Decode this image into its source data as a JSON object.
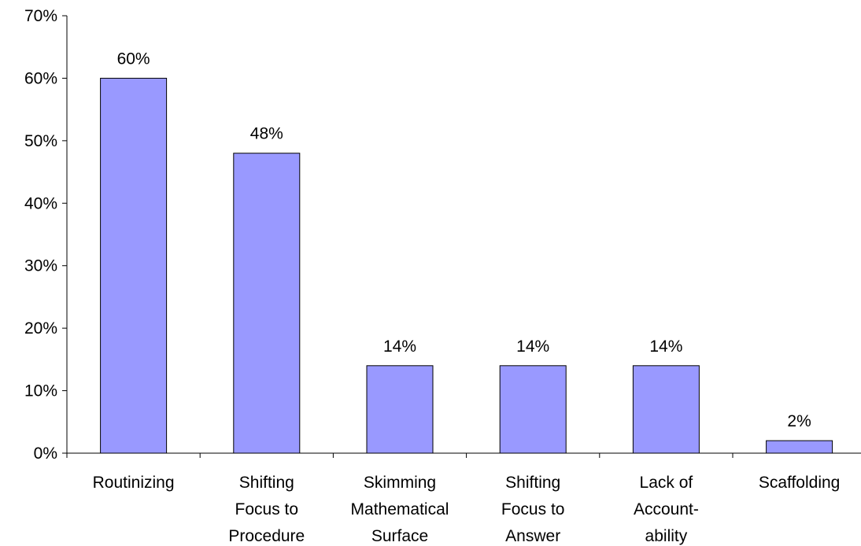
{
  "chart_data": {
    "type": "bar",
    "title": "",
    "xlabel": "",
    "ylabel": "",
    "categories": [
      [
        "Routinizing"
      ],
      [
        "Shifting",
        "Focus to",
        "Procedure"
      ],
      [
        "Skimming",
        "Mathematical",
        "Surface"
      ],
      [
        "Shifting",
        "Focus to",
        "Answer"
      ],
      [
        "Lack of",
        "Account-",
        "ability"
      ],
      [
        "Scaffolding"
      ]
    ],
    "values": [
      60,
      48,
      14,
      14,
      14,
      2
    ],
    "data_labels": [
      "60%",
      "48%",
      "14%",
      "14%",
      "14%",
      "2%"
    ],
    "ylim": [
      0,
      70
    ],
    "yticks": [
      0,
      10,
      20,
      30,
      40,
      50,
      60,
      70
    ],
    "ytick_labels": [
      "0%",
      "10%",
      "20%",
      "30%",
      "40%",
      "50%",
      "60%",
      "70%"
    ],
    "grid": false,
    "legend": "none",
    "bar_color": "#9999FF",
    "bar_edge_color": "#000000"
  }
}
